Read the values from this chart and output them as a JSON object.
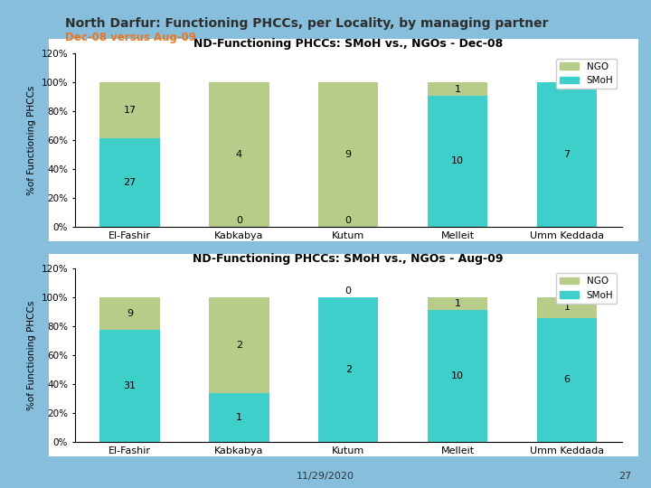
{
  "title_main": "North Darfur: Functioning PHCCs, per Locality, by managing partner",
  "title_sub": "Dec-08 versus Aug-09",
  "title_main_color": "#2F2F2F",
  "title_sub_color": "#E87722",
  "background_outer": "#87BEDC",
  "background_inner": "#FFFFFF",
  "categories": [
    "El-Fashir",
    "Kabkabya",
    "Kutum",
    "Melleit",
    "Umm Keddada"
  ],
  "chart1": {
    "title": "ND-Functioning PHCCs: SMoH vs., NGOs - Dec-08",
    "smoh": [
      27,
      0,
      0,
      10,
      7
    ],
    "ngo": [
      17,
      4,
      9,
      1,
      0
    ],
    "ylabel": "%of Functioning PHCCs"
  },
  "chart2": {
    "title": "ND-Functioning PHCCs: SMoH vs., NGOs - Aug-09",
    "smoh": [
      31,
      1,
      2,
      10,
      6
    ],
    "ngo": [
      9,
      2,
      0,
      1,
      1
    ],
    "ylabel": "%of Functioning PHCCs"
  },
  "color_ngo": "#B8CC8A",
  "color_smoh": "#3ECFCA",
  "ylim": [
    0,
    1.2
  ],
  "yticks": [
    0.0,
    0.2,
    0.4,
    0.6,
    0.8,
    1.0,
    1.2
  ],
  "ytick_labels": [
    "0%",
    "20%",
    "40%",
    "60%",
    "80%",
    "100%",
    "120%"
  ],
  "footer_date": "11/29/2020",
  "footer_page": "27"
}
